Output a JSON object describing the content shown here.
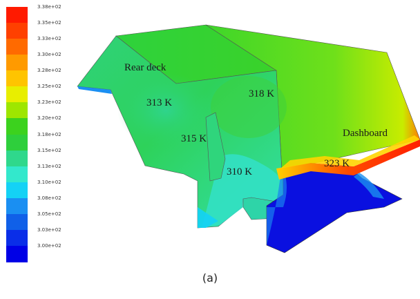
{
  "legend": {
    "ticks": [
      "3.38e+02",
      "3.35e+02",
      "3.33e+02",
      "3.30e+02",
      "3.28e+02",
      "3.25e+02",
      "3.23e+02",
      "3.20e+02",
      "3.18e+02",
      "3.15e+02",
      "3.13e+02",
      "3.10e+02",
      "3.08e+02",
      "3.05e+02",
      "3.03e+02",
      "3.00e+02"
    ],
    "colors": [
      "#ff1a00",
      "#ff4000",
      "#ff6a00",
      "#ff9a00",
      "#ffc400",
      "#e8ee00",
      "#9ee600",
      "#3cd21e",
      "#2ecf3c",
      "#2fd88c",
      "#33e8cc",
      "#14d2f5",
      "#1a8ff2",
      "#1060e8",
      "#0a2ee8",
      "#0000e6"
    ]
  },
  "labels": {
    "rear_deck": "Rear deck",
    "t313": "313 K",
    "t318": "318 K",
    "t315": "315 K",
    "t310": "310 K",
    "t323": "323 K",
    "dashboard": "Dashboard"
  },
  "caption": "(a)"
}
